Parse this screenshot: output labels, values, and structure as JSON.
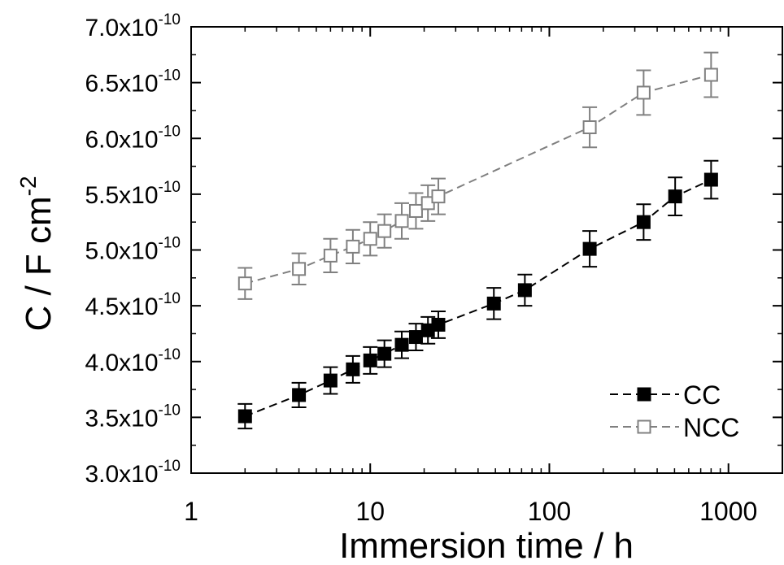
{
  "chart_data": {
    "type": "scatter",
    "xlabel": "Immersion time / h",
    "ylabel_main": "C / F cm",
    "ylabel_sup": "-2",
    "x_scale": "log",
    "xlim": [
      1,
      2000
    ],
    "ylim": [
      3e-10,
      7e-10
    ],
    "x_ticks": [
      {
        "value": 1,
        "label": "1"
      },
      {
        "value": 10,
        "label": "10"
      },
      {
        "value": 100,
        "label": "100"
      },
      {
        "value": 1000,
        "label": "1000"
      }
    ],
    "y_ticks": [
      {
        "value": 3e-10,
        "mantissa": "3.0x10",
        "exp": "-10"
      },
      {
        "value": 3.5e-10,
        "mantissa": "3.5x10",
        "exp": "-10"
      },
      {
        "value": 4e-10,
        "mantissa": "4.0x10",
        "exp": "-10"
      },
      {
        "value": 4.5e-10,
        "mantissa": "4.5x10",
        "exp": "-10"
      },
      {
        "value": 5e-10,
        "mantissa": "5.0x10",
        "exp": "-10"
      },
      {
        "value": 5.5e-10,
        "mantissa": "5.5x10",
        "exp": "-10"
      },
      {
        "value": 6e-10,
        "mantissa": "6.0x10",
        "exp": "-10"
      },
      {
        "value": 6.5e-10,
        "mantissa": "6.5x10",
        "exp": "-10"
      },
      {
        "value": 7e-10,
        "mantissa": "7.0x10",
        "exp": "-10"
      }
    ],
    "grid": false,
    "legend_position": "bottom-right",
    "series": [
      {
        "name": "CC",
        "color": "#000000",
        "marker": "filled-square",
        "line": "dashed",
        "x": [
          2,
          4,
          6,
          8,
          10,
          12,
          15,
          18,
          21,
          24,
          49,
          73,
          168,
          336,
          504,
          800
        ],
        "y": [
          3.51e-10,
          3.7e-10,
          3.83e-10,
          3.93e-10,
          4.01e-10,
          4.07e-10,
          4.15e-10,
          4.22e-10,
          4.28e-10,
          4.33e-10,
          4.52e-10,
          4.64e-10,
          5.01e-10,
          5.25e-10,
          5.48e-10,
          5.63e-10
        ],
        "err": [
          1.1e-11,
          1.1e-11,
          1.2e-11,
          1.2e-11,
          1.2e-11,
          1.2e-11,
          1.2e-11,
          1.2e-11,
          1.2e-11,
          1.2e-11,
          1.4e-11,
          1.4e-11,
          1.6e-11,
          1.6e-11,
          1.7e-11,
          1.7e-11
        ]
      },
      {
        "name": "NCC",
        "color": "#808080",
        "marker": "open-square",
        "line": "dashed",
        "x": [
          2,
          4,
          6,
          8,
          10,
          12,
          15,
          18,
          21,
          24,
          168,
          336,
          800
        ],
        "y": [
          4.7e-10,
          4.83e-10,
          4.95e-10,
          5.03e-10,
          5.1e-10,
          5.17e-10,
          5.26e-10,
          5.35e-10,
          5.42e-10,
          5.48e-10,
          6.1e-10,
          6.41e-10,
          6.57e-10
        ],
        "err": [
          1.4e-11,
          1.4e-11,
          1.5e-11,
          1.5e-11,
          1.5e-11,
          1.5e-11,
          1.6e-11,
          1.6e-11,
          1.6e-11,
          1.6e-11,
          1.8e-11,
          2e-11,
          2e-11
        ]
      }
    ]
  }
}
